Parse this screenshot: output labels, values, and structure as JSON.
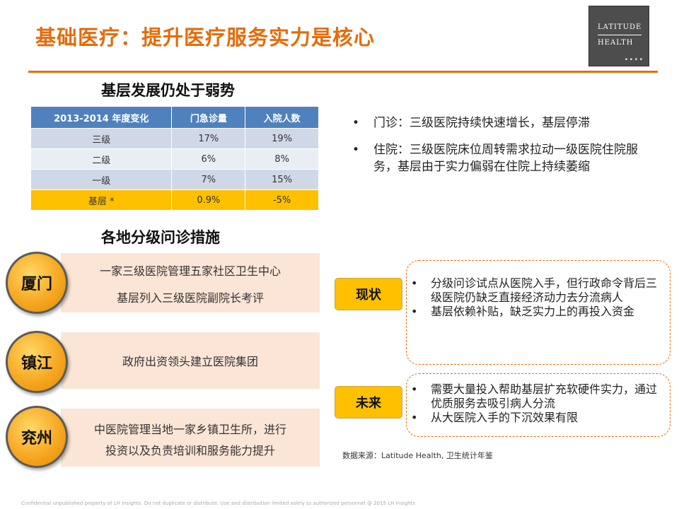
{
  "title": "基础医疗：提升医疗服务实力是核心",
  "logo": {
    "line1": "LATITUDE",
    "line2": "HEALTH"
  },
  "section1": {
    "title": "基层发展仍处于弱势",
    "table": {
      "headers": [
        "2013-2014 年度变化",
        "门急诊量",
        "入院人数"
      ],
      "rows": [
        [
          "三级",
          "17%",
          "19%"
        ],
        [
          "二级",
          "6%",
          "8%"
        ],
        [
          "一级",
          "7%",
          "15%"
        ],
        [
          "基层 *",
          "0.9%",
          "-5%"
        ]
      ]
    }
  },
  "bullets": [
    "门诊：三级医院持续快速增长，基层停滞",
    "住院：三级医院床位周转需求拉动一级医院住院服务，基层由于实力偏弱在住院上持续萎缩"
  ],
  "section2": {
    "title": "各地分级问诊措施",
    "cities": [
      {
        "name": "厦门",
        "lines": [
          "一家三级医院管理五家社区卫生中心",
          "基层列入三级医院副院长考评"
        ]
      },
      {
        "name": "镇江",
        "lines": [
          "政府出资领头建立医院集团"
        ]
      },
      {
        "name": "兖州",
        "lines": [
          "中医院管理当地一家乡镇卫生所，进行",
          "投资以及负责培训和服务能力提升"
        ]
      }
    ]
  },
  "status": {
    "label": "现状",
    "items": [
      "分级问诊试点从医院入手，但行政命令背后三级医院仍缺乏直接经济动力去分流病人",
      "基层依赖补贴，缺乏实力上的再投入资金"
    ]
  },
  "future": {
    "label": "未来",
    "items": [
      "需要大量投入帮助基层扩充软硬件实力，通过优质服务去吸引病人分流",
      "从大医院入手的下沉效果有限"
    ]
  },
  "source": "数据来源：Latitude Health, 卫生统计年鉴",
  "footer": "Confidential unpublished property of LH Insights. Do not duplicate or distribute. Use and distribution limited solely to authorized personnel @ 2015 LH Insights",
  "colors": {
    "accent": "#e46c0a",
    "table_header": "#4f81bd",
    "highlight": "#ffc000",
    "city_box": "#fbe5d6"
  }
}
